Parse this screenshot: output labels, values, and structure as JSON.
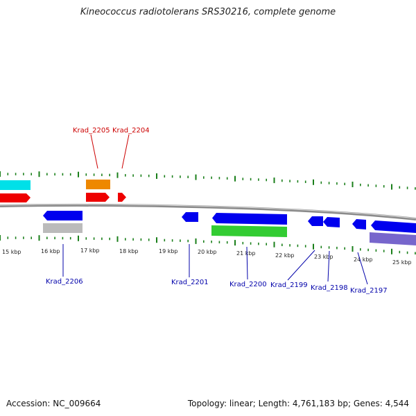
{
  "title": "Kineococcus radiotolerans SRS30216, complete genome",
  "footer": {
    "accession": "Accession: NC_009664",
    "topology": "Topology: linear; Length: 4,761,183 bp; Genes: 4,544"
  },
  "colors": {
    "backbone": "#8a8a8a",
    "tick": "#1a7f1a",
    "label_top": "#cc0000",
    "label_bottom": "#0000aa",
    "red": "#ee0000",
    "orange": "#ee8800",
    "cyan": "#00e0e8",
    "blue": "#0000ee",
    "gray": "#bbbbbb",
    "green": "#33cc33",
    "purple": "#7766cc"
  },
  "scale": {
    "labels": [
      "15 kbp",
      "16 kbp",
      "17 kbp",
      "18 kbp",
      "19 kbp",
      "20 kbp",
      "21 kbp",
      "22 kbp",
      "23 kbp",
      "24 kbp",
      "25 kbp"
    ]
  },
  "labels_top": [
    "Krad_2205",
    "Krad_2204"
  ],
  "labels_bottom": [
    "Krad_2206",
    "Krad_2201",
    "Krad_2200",
    "Krad_2199",
    "Krad_2198",
    "Krad_2197"
  ]
}
